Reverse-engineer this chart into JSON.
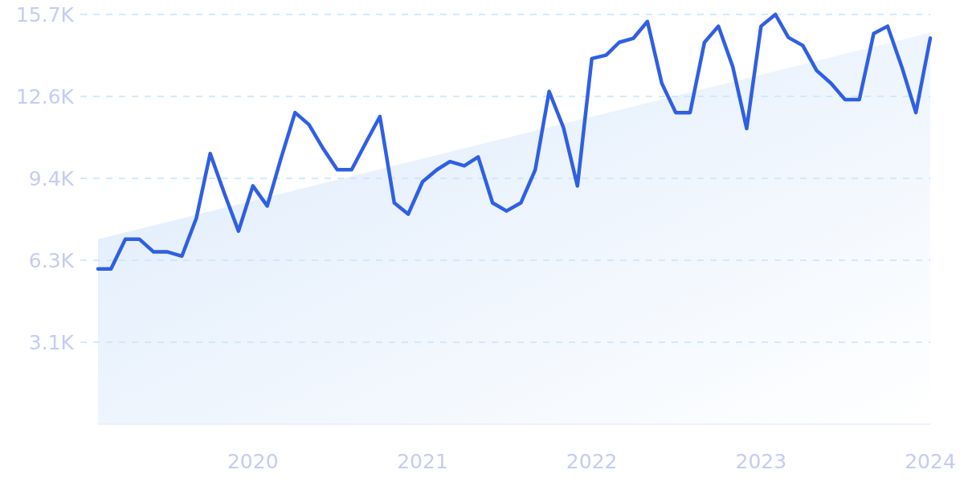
{
  "chart_data": {
    "type": "line",
    "x": [
      "2019-02",
      "2019-03",
      "2019-04",
      "2019-05",
      "2019-06",
      "2019-07",
      "2019-08",
      "2019-09",
      "2019-10",
      "2019-11",
      "2019-12",
      "2020-01",
      "2020-02",
      "2020-03",
      "2020-04",
      "2020-05",
      "2020-06",
      "2020-07",
      "2020-08",
      "2020-09",
      "2020-10",
      "2020-11",
      "2020-12",
      "2021-01",
      "2021-02",
      "2021-03",
      "2021-04",
      "2021-05",
      "2021-06",
      "2021-07",
      "2021-08",
      "2021-09",
      "2021-10",
      "2021-11",
      "2021-12",
      "2022-01",
      "2022-02",
      "2022-03",
      "2022-04",
      "2022-05",
      "2022-06",
      "2022-07",
      "2022-08",
      "2022-09",
      "2022-10",
      "2022-11",
      "2022-12",
      "2023-01",
      "2023-02",
      "2023-03",
      "2023-04",
      "2023-05",
      "2023-06",
      "2023-07",
      "2023-08",
      "2023-09",
      "2023-10",
      "2023-11",
      "2023-12",
      "2024-01"
    ],
    "series": [
      {
        "type": "area",
        "x": [
          "2019-02",
          "2024-01"
        ],
        "values": [
          7090,
          15000
        ],
        "color": "#dceafb"
      },
      {
        "color": "#2f5fe3",
        "values": [
          5950,
          5950,
          7090,
          7090,
          6600,
          6600,
          6440,
          7890,
          10370,
          8820,
          7400,
          9130,
          8360,
          10150,
          11940,
          11480,
          10550,
          9750,
          9750,
          10800,
          11790,
          8480,
          8050,
          9290,
          9750,
          10060,
          9900,
          10240,
          8480,
          8170,
          8480,
          9750,
          12750,
          11360,
          9130,
          14010,
          14140,
          14630,
          14790,
          15430,
          13060,
          11940,
          11940,
          14630,
          15250,
          13700,
          11330,
          15250,
          15700,
          14820,
          14510,
          13550,
          13060,
          12440,
          12440,
          14970,
          15250,
          13670,
          11940,
          14790
        ]
      }
    ],
    "xlim": [
      "2019-02",
      "2024-01"
    ],
    "xticks": [
      "2020",
      "2021",
      "2022",
      "2023",
      "2024"
    ],
    "ylim": [
      0,
      15700
    ],
    "yticks": [
      {
        "value": 3140,
        "label": "3.1K"
      },
      {
        "value": 6280,
        "label": "6.3K"
      },
      {
        "value": 9420,
        "label": "9.4K"
      },
      {
        "value": 12560,
        "label": "12.6K"
      },
      {
        "value": 15700,
        "label": "15.7K"
      }
    ],
    "grid": "y",
    "line_style": "solid",
    "marker": "none"
  }
}
